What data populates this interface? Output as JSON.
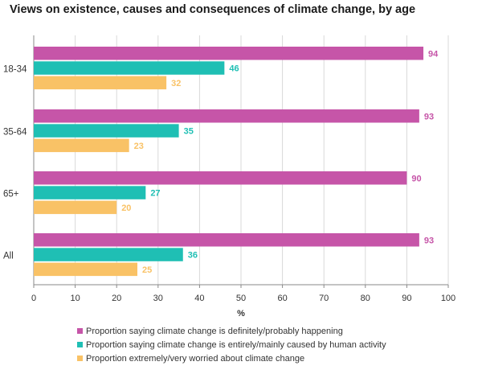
{
  "chart_data": {
    "type": "bar",
    "orientation": "horizontal",
    "title": "Views on existence, causes and consequences of climate change, by age",
    "categories": [
      "18-34",
      "35-64",
      "65+",
      "All"
    ],
    "series": [
      {
        "name": "Proportion saying climate change is definitely/probably happening",
        "color": "#c655a8",
        "values": [
          94,
          93,
          90,
          93
        ]
      },
      {
        "name": "Proportion saying climate change is entirely/mainly caused by human activity",
        "color": "#1fbfb4",
        "values": [
          46,
          35,
          27,
          36
        ]
      },
      {
        "name": "Proportion extremely/very worried about climate change",
        "color": "#f9c266",
        "values": [
          32,
          23,
          20,
          25
        ]
      }
    ],
    "xlabel": "%",
    "xlim": [
      0,
      100
    ],
    "xticks": [
      0,
      10,
      20,
      30,
      40,
      50,
      60,
      70,
      80,
      90,
      100
    ],
    "grid": true,
    "legend_position": "bottom"
  }
}
